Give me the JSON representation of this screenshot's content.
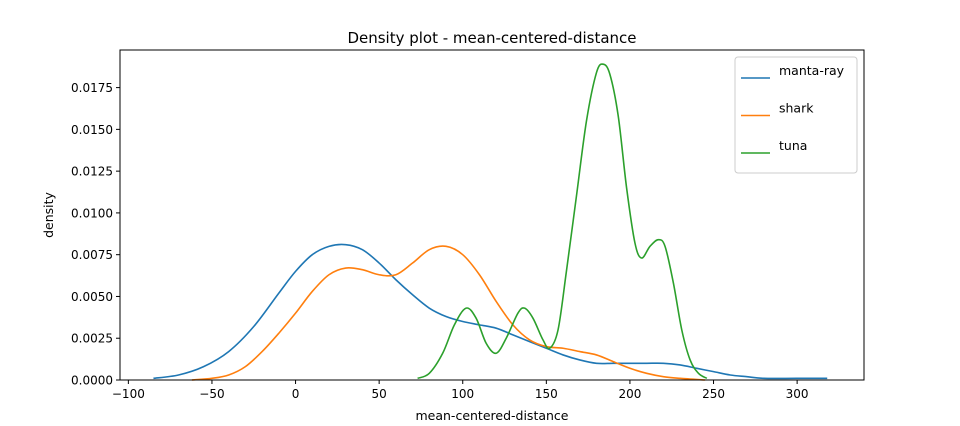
{
  "chart_data": {
    "type": "line",
    "title": "Density plot - mean-centered-distance",
    "xlabel": "mean-centered-distance",
    "ylabel": "density",
    "xlim": [
      -105,
      340
    ],
    "ylim": [
      0,
      0.01975
    ],
    "xticks": [
      -100,
      -50,
      0,
      50,
      100,
      150,
      200,
      250,
      300
    ],
    "xtick_labels": [
      "−100",
      "−50",
      "0",
      "50",
      "100",
      "150",
      "200",
      "250",
      "300"
    ],
    "yticks": [
      0,
      0.0025,
      0.005,
      0.0075,
      0.01,
      0.0125,
      0.015,
      0.0175
    ],
    "ytick_labels": [
      "0.0000",
      "0.0025",
      "0.0050",
      "0.0075",
      "0.0100",
      "0.0125",
      "0.0150",
      "0.0175"
    ],
    "grid": false,
    "legend_position": "top-right",
    "series": [
      {
        "name": "manta-ray",
        "color": "#1f77b4",
        "points": [
          [
            -85,
            0.0001
          ],
          [
            -70,
            0.0003
          ],
          [
            -55,
            0.0008
          ],
          [
            -40,
            0.0017
          ],
          [
            -25,
            0.0032
          ],
          [
            -10,
            0.0052
          ],
          [
            0,
            0.0065
          ],
          [
            10,
            0.0075
          ],
          [
            20,
            0.008
          ],
          [
            30,
            0.0081
          ],
          [
            40,
            0.0078
          ],
          [
            50,
            0.007
          ],
          [
            60,
            0.006
          ],
          [
            70,
            0.0051
          ],
          [
            80,
            0.0043
          ],
          [
            90,
            0.0038
          ],
          [
            100,
            0.0035
          ],
          [
            110,
            0.0033
          ],
          [
            120,
            0.0031
          ],
          [
            130,
            0.0027
          ],
          [
            140,
            0.0023
          ],
          [
            150,
            0.0019
          ],
          [
            160,
            0.0015
          ],
          [
            170,
            0.0012
          ],
          [
            180,
            0.001
          ],
          [
            190,
            0.001
          ],
          [
            200,
            0.001
          ],
          [
            210,
            0.001
          ],
          [
            220,
            0.001
          ],
          [
            230,
            0.0009
          ],
          [
            240,
            0.0007
          ],
          [
            250,
            0.0005
          ],
          [
            260,
            0.0003
          ],
          [
            270,
            0.0002
          ],
          [
            280,
            0.0001
          ],
          [
            300,
            0.0001
          ],
          [
            318,
            0.0001
          ]
        ]
      },
      {
        "name": "shark",
        "color": "#ff7f0e",
        "points": [
          [
            -62,
            0.0
          ],
          [
            -50,
            0.0001
          ],
          [
            -40,
            0.0003
          ],
          [
            -30,
            0.0008
          ],
          [
            -20,
            0.0017
          ],
          [
            -10,
            0.0028
          ],
          [
            0,
            0.004
          ],
          [
            10,
            0.0053
          ],
          [
            20,
            0.0063
          ],
          [
            30,
            0.0067
          ],
          [
            40,
            0.0066
          ],
          [
            50,
            0.0063
          ],
          [
            60,
            0.0063
          ],
          [
            70,
            0.007
          ],
          [
            80,
            0.0078
          ],
          [
            90,
            0.008
          ],
          [
            100,
            0.0075
          ],
          [
            110,
            0.0063
          ],
          [
            120,
            0.0047
          ],
          [
            130,
            0.0033
          ],
          [
            140,
            0.0024
          ],
          [
            150,
            0.002
          ],
          [
            160,
            0.0019
          ],
          [
            170,
            0.0017
          ],
          [
            180,
            0.0015
          ],
          [
            190,
            0.0011
          ],
          [
            200,
            0.0007
          ],
          [
            210,
            0.0004
          ],
          [
            220,
            0.0002
          ],
          [
            230,
            0.0001
          ],
          [
            245,
            0.0
          ]
        ]
      },
      {
        "name": "tuna",
        "color": "#2ca02c",
        "points": [
          [
            73,
            0.0001
          ],
          [
            80,
            0.0004
          ],
          [
            88,
            0.0016
          ],
          [
            95,
            0.0033
          ],
          [
            102,
            0.0043
          ],
          [
            108,
            0.0037
          ],
          [
            114,
            0.0022
          ],
          [
            120,
            0.0016
          ],
          [
            126,
            0.0025
          ],
          [
            133,
            0.004
          ],
          [
            137,
            0.0043
          ],
          [
            142,
            0.0037
          ],
          [
            148,
            0.0024
          ],
          [
            152,
            0.0019
          ],
          [
            157,
            0.003
          ],
          [
            162,
            0.0065
          ],
          [
            168,
            0.011
          ],
          [
            174,
            0.0155
          ],
          [
            180,
            0.0184
          ],
          [
            184,
            0.0189
          ],
          [
            188,
            0.0183
          ],
          [
            193,
            0.0158
          ],
          [
            198,
            0.0115
          ],
          [
            203,
            0.0082
          ],
          [
            207,
            0.0073
          ],
          [
            212,
            0.008
          ],
          [
            217,
            0.0084
          ],
          [
            221,
            0.008
          ],
          [
            226,
            0.0058
          ],
          [
            231,
            0.003
          ],
          [
            236,
            0.0012
          ],
          [
            241,
            0.0004
          ],
          [
            246,
            0.0001
          ]
        ]
      }
    ]
  }
}
